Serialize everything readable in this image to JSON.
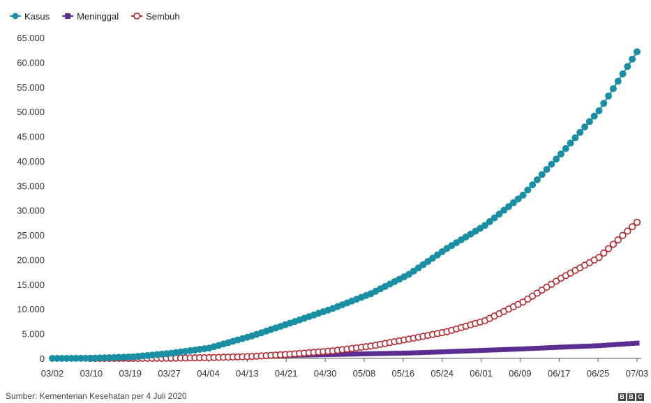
{
  "chart_data": {
    "type": "line",
    "x_tick_labels": [
      "03/02",
      "03/10",
      "03/19",
      "03/27",
      "04/04",
      "04/13",
      "04/21",
      "04/30",
      "05/08",
      "05/16",
      "05/24",
      "06/01",
      "06/09",
      "06/17",
      "06/25",
      "07/03"
    ],
    "y_tick_labels": [
      "0",
      "5.000",
      "10.000",
      "15.000",
      "20.000",
      "25.000",
      "30.000",
      "35.000",
      "40.000",
      "45.000",
      "50.000",
      "55.000",
      "60.000",
      "65.000"
    ],
    "ylim": [
      0,
      65000
    ],
    "x_start": "2020-03-02",
    "x_end": "2020-07-03",
    "legend_position": "top-left",
    "grid": false,
    "series": [
      {
        "name": "Kasus",
        "color": "#1a8fa3",
        "marker": "filled-circle",
        "start": "2020-03-02",
        "points": [
          [
            "2020-03-02",
            2
          ],
          [
            "2020-03-10",
            19
          ],
          [
            "2020-03-19",
            309
          ],
          [
            "2020-03-27",
            1046
          ],
          [
            "2020-04-04",
            2092
          ],
          [
            "2020-04-13",
            4557
          ],
          [
            "2020-04-21",
            7135
          ],
          [
            "2020-04-30",
            10118
          ],
          [
            "2020-05-08",
            13112
          ],
          [
            "2020-05-16",
            17025
          ],
          [
            "2020-05-24",
            22271
          ],
          [
            "2020-06-01",
            26940
          ],
          [
            "2020-06-09",
            33076
          ],
          [
            "2020-06-17",
            41431
          ],
          [
            "2020-06-25",
            50187
          ],
          [
            "2020-07-03",
            62142
          ]
        ]
      },
      {
        "name": "Meninggal",
        "color": "#5a2d91",
        "marker": "filled-square",
        "start": "2020-03-10",
        "points": [
          [
            "2020-03-10",
            0
          ],
          [
            "2020-03-19",
            25
          ],
          [
            "2020-03-27",
            87
          ],
          [
            "2020-04-04",
            191
          ],
          [
            "2020-04-13",
            399
          ],
          [
            "2020-04-21",
            616
          ],
          [
            "2020-04-30",
            792
          ],
          [
            "2020-05-08",
            943
          ],
          [
            "2020-05-16",
            1089
          ],
          [
            "2020-05-24",
            1351
          ],
          [
            "2020-06-01",
            1641
          ],
          [
            "2020-06-09",
            1923
          ],
          [
            "2020-06-17",
            2276
          ],
          [
            "2020-06-25",
            2573
          ],
          [
            "2020-07-03",
            3089
          ]
        ]
      },
      {
        "name": "Sembuh",
        "color": "#b2282e",
        "marker": "open-circle",
        "start": "2020-03-10",
        "points": [
          [
            "2020-03-10",
            0
          ],
          [
            "2020-03-19",
            15
          ],
          [
            "2020-03-27",
            46
          ],
          [
            "2020-04-04",
            150
          ],
          [
            "2020-04-13",
            380
          ],
          [
            "2020-04-21",
            842
          ],
          [
            "2020-04-30",
            1522
          ],
          [
            "2020-05-08",
            2494
          ],
          [
            "2020-05-16",
            3911
          ],
          [
            "2020-05-24",
            5402
          ],
          [
            "2020-06-01",
            7637
          ],
          [
            "2020-06-09",
            11414
          ],
          [
            "2020-06-17",
            16243
          ],
          [
            "2020-06-25",
            20449
          ],
          [
            "2020-07-03",
            27568
          ]
        ]
      }
    ],
    "source": "Sumber: Kementerian Kesehatan per 4 Juli 2020",
    "logo": "BBC"
  }
}
